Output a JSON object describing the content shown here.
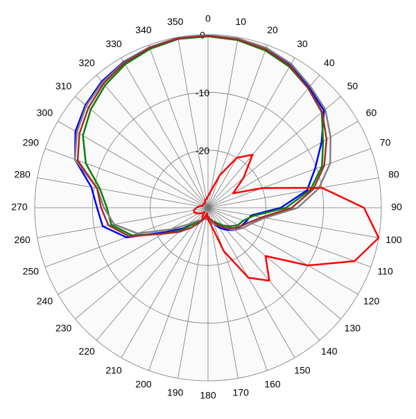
{
  "chart_data": {
    "type": "polar",
    "rlim": [
      -30,
      0
    ],
    "rticks": [
      -20,
      -10,
      0
    ],
    "thetaticks": [
      0,
      10,
      20,
      30,
      40,
      50,
      60,
      70,
      80,
      90,
      100,
      110,
      120,
      130,
      140,
      150,
      160,
      170,
      180,
      190,
      200,
      210,
      220,
      230,
      240,
      250,
      260,
      270,
      280,
      290,
      300,
      310,
      320,
      330,
      340,
      350
    ],
    "theta": [
      0,
      10,
      20,
      30,
      40,
      50,
      60,
      70,
      80,
      90,
      100,
      110,
      120,
      130,
      140,
      150,
      160,
      170,
      180,
      190,
      200,
      210,
      220,
      230,
      240,
      250,
      260,
      270,
      280,
      290,
      300,
      310,
      320,
      330,
      340,
      350
    ],
    "grid": true,
    "series": [
      {
        "color": "#0000ff",
        "values": [
          -0.2,
          -0.3,
          -0.7,
          -1.5,
          -2.8,
          -3.8,
          -7.3,
          -10.3,
          -12.6,
          -17.4,
          -22.4,
          -23,
          -23.5,
          -24,
          -25,
          -26,
          -27,
          -27.5,
          -28,
          -28,
          -28,
          -27.5,
          -26.5,
          -24.5,
          -21.6,
          -15,
          -11.5,
          -10.8,
          -9.5,
          -5.5,
          -3.5,
          -2.3,
          -1.4,
          -0.8,
          -0.4,
          -0.1
        ]
      },
      {
        "color": "#008000",
        "values": [
          -0.3,
          -0.5,
          -1,
          -1.8,
          -3,
          -4.3,
          -7,
          -9,
          -12,
          -16.5,
          -22,
          -23.5,
          -24,
          -25,
          -26,
          -27,
          -27.5,
          -28,
          -28,
          -28,
          -28,
          -27.5,
          -26.5,
          -24,
          -21,
          -16,
          -13,
          -12.5,
          -11,
          -7.5,
          -5,
          -3.5,
          -2.3,
          -1.3,
          -0.7,
          -0.3
        ]
      },
      {
        "color": "#808080",
        "values": [
          -0.1,
          -0.2,
          -0.5,
          -1.2,
          -2.5,
          -3.5,
          -5.5,
          -7.5,
          -10.5,
          -14.5,
          -20,
          -22,
          -23,
          -24,
          -25.5,
          -26.5,
          -27,
          -27.5,
          -28,
          -28,
          -28,
          -27.5,
          -27,
          -25.5,
          -22.5,
          -17,
          -13.5,
          -12,
          -10.5,
          -5.5,
          -3.8,
          -2.5,
          -1.6,
          -0.9,
          -0.4,
          -0.1
        ]
      },
      {
        "color": "#a52a2a",
        "values": [
          -0.2,
          -0.4,
          -0.8,
          -1.6,
          -3,
          -4.2,
          -6.3,
          -8.6,
          -11.5,
          -15.5,
          -20.5,
          -22.5,
          -23.5,
          -24.5,
          -25.5,
          -26.5,
          -27.5,
          -28,
          -28.5,
          -28.5,
          -28,
          -27,
          -25.5,
          -23.5,
          -21,
          -15.5,
          -12.5,
          -11.5,
          -10.5,
          -6,
          -4.3,
          -3,
          -1.9,
          -1,
          -0.5,
          -0.2
        ]
      },
      {
        "color": "#ff0000",
        "values": [
          -28,
          -27,
          -24,
          -20,
          -18,
          -22,
          -25,
          -20,
          -10,
          -3,
          0,
          -3,
          -10,
          -17,
          -13.5,
          -16,
          -22,
          -27,
          -28,
          -29,
          -28,
          -28,
          -29,
          -28.5,
          -28,
          -27.5,
          -27.5,
          -28,
          -28.5,
          -29,
          -29,
          -29,
          -29,
          -29,
          -28.5,
          -28.5
        ]
      }
    ]
  }
}
